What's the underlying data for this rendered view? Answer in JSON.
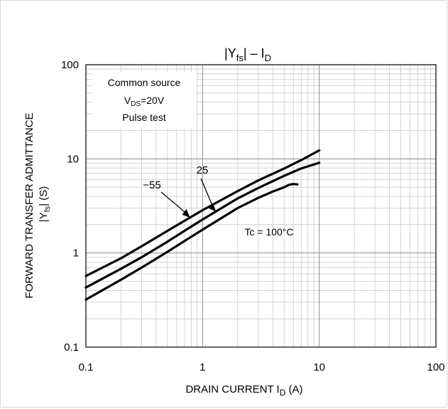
{
  "chart_data": {
    "type": "line",
    "title": {
      "main": "|Y",
      "sub": "fs",
      "mid": "| – I",
      "sub2": "D"
    },
    "xlabel": {
      "main": "DRAIN CURRENT   I",
      "sub": "D",
      "unit": "   (A)"
    },
    "ylabel": {
      "line1": "FORWARD TRANSFER ADMITTANCE",
      "line2_main": "|Y",
      "line2_sub": "fs",
      "line2_end": "|   (S)"
    },
    "xscale": "log",
    "yscale": "log",
    "xlim": [
      0.1,
      100
    ],
    "ylim": [
      0.1,
      100
    ],
    "grid": true,
    "x_ticks": [
      "0.1",
      "1",
      "10",
      "100"
    ],
    "y_ticks": [
      "0.1",
      "1",
      "10",
      "100"
    ],
    "conditions": [
      {
        "text": "Common source"
      },
      {
        "main": "V",
        "sub": "DS",
        "rest": "=20V"
      },
      {
        "text": "Pulse test"
      }
    ],
    "series": [
      {
        "name": "−55",
        "x": [
          0.1,
          0.2,
          0.3,
          0.5,
          0.7,
          1,
          2,
          3,
          5,
          7,
          10
        ],
        "y": [
          0.57,
          0.88,
          1.18,
          1.72,
          2.2,
          2.85,
          4.55,
          5.9,
          7.9,
          9.7,
          12.3
        ]
      },
      {
        "name": "25",
        "x": [
          0.1,
          0.2,
          0.3,
          0.5,
          0.7,
          1,
          2,
          3,
          5,
          7,
          10
        ],
        "y": [
          0.43,
          0.68,
          0.9,
          1.32,
          1.72,
          2.27,
          3.8,
          4.9,
          6.6,
          7.9,
          9.1
        ]
      },
      {
        "name": "Tc = 100°C",
        "x": [
          0.1,
          0.2,
          0.3,
          0.5,
          0.7,
          1,
          2,
          3,
          4,
          5,
          5.5,
          6,
          6.5
        ],
        "y": [
          0.32,
          0.52,
          0.7,
          1.03,
          1.34,
          1.77,
          3.0,
          3.85,
          4.5,
          5.0,
          5.3,
          5.4,
          5.35
        ]
      }
    ],
    "annotations": [
      {
        "label": "−55",
        "series": 0,
        "at_x": 0.78
      },
      {
        "label": "25",
        "series": 1,
        "at_x": 1.3
      },
      {
        "label": "Tc = 100°C",
        "series": 2
      }
    ]
  }
}
